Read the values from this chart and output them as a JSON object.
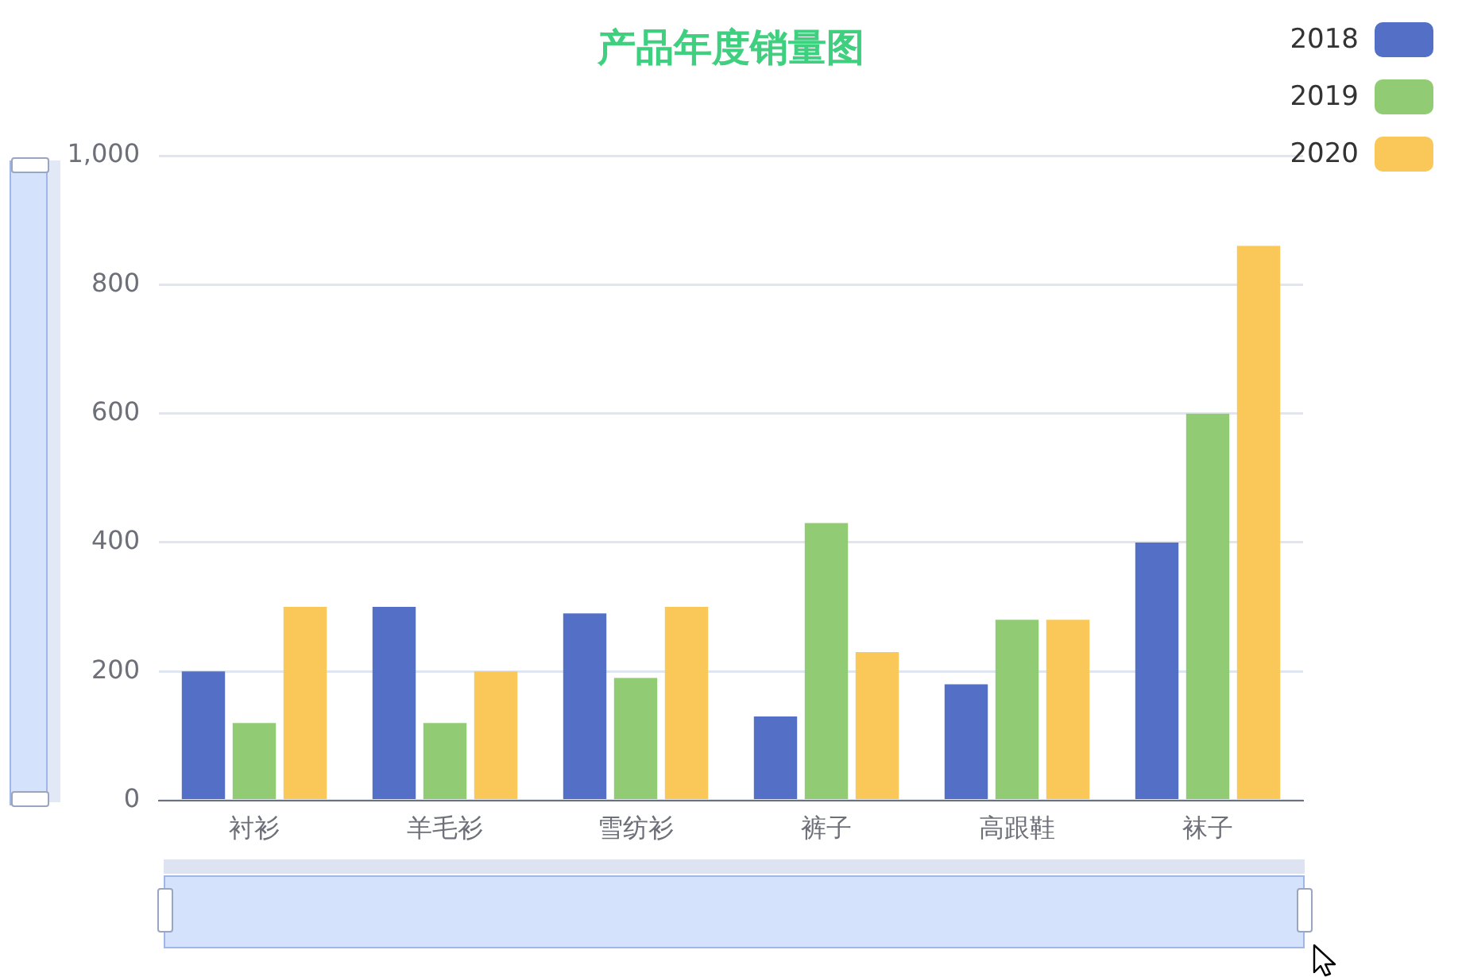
{
  "chart_data": {
    "type": "bar",
    "title": "产品年度销量图",
    "categories": [
      "衬衫",
      "羊毛衫",
      "雪纺衫",
      "裤子",
      "高跟鞋",
      "袜子"
    ],
    "series": [
      {
        "name": "2018",
        "color": "#5470c6",
        "values": [
          200,
          300,
          290,
          130,
          180,
          400
        ]
      },
      {
        "name": "2019",
        "color": "#91cc75",
        "values": [
          120,
          120,
          190,
          430,
          280,
          600
        ]
      },
      {
        "name": "2020",
        "color": "#fac858",
        "values": [
          300,
          200,
          300,
          230,
          280,
          860
        ]
      }
    ],
    "ylim": [
      0,
      1000
    ],
    "yticks": [
      0,
      200,
      400,
      600,
      800,
      {
        "value": 1000,
        "label": "1,000"
      }
    ],
    "grid": "y",
    "legend": "top right"
  }
}
